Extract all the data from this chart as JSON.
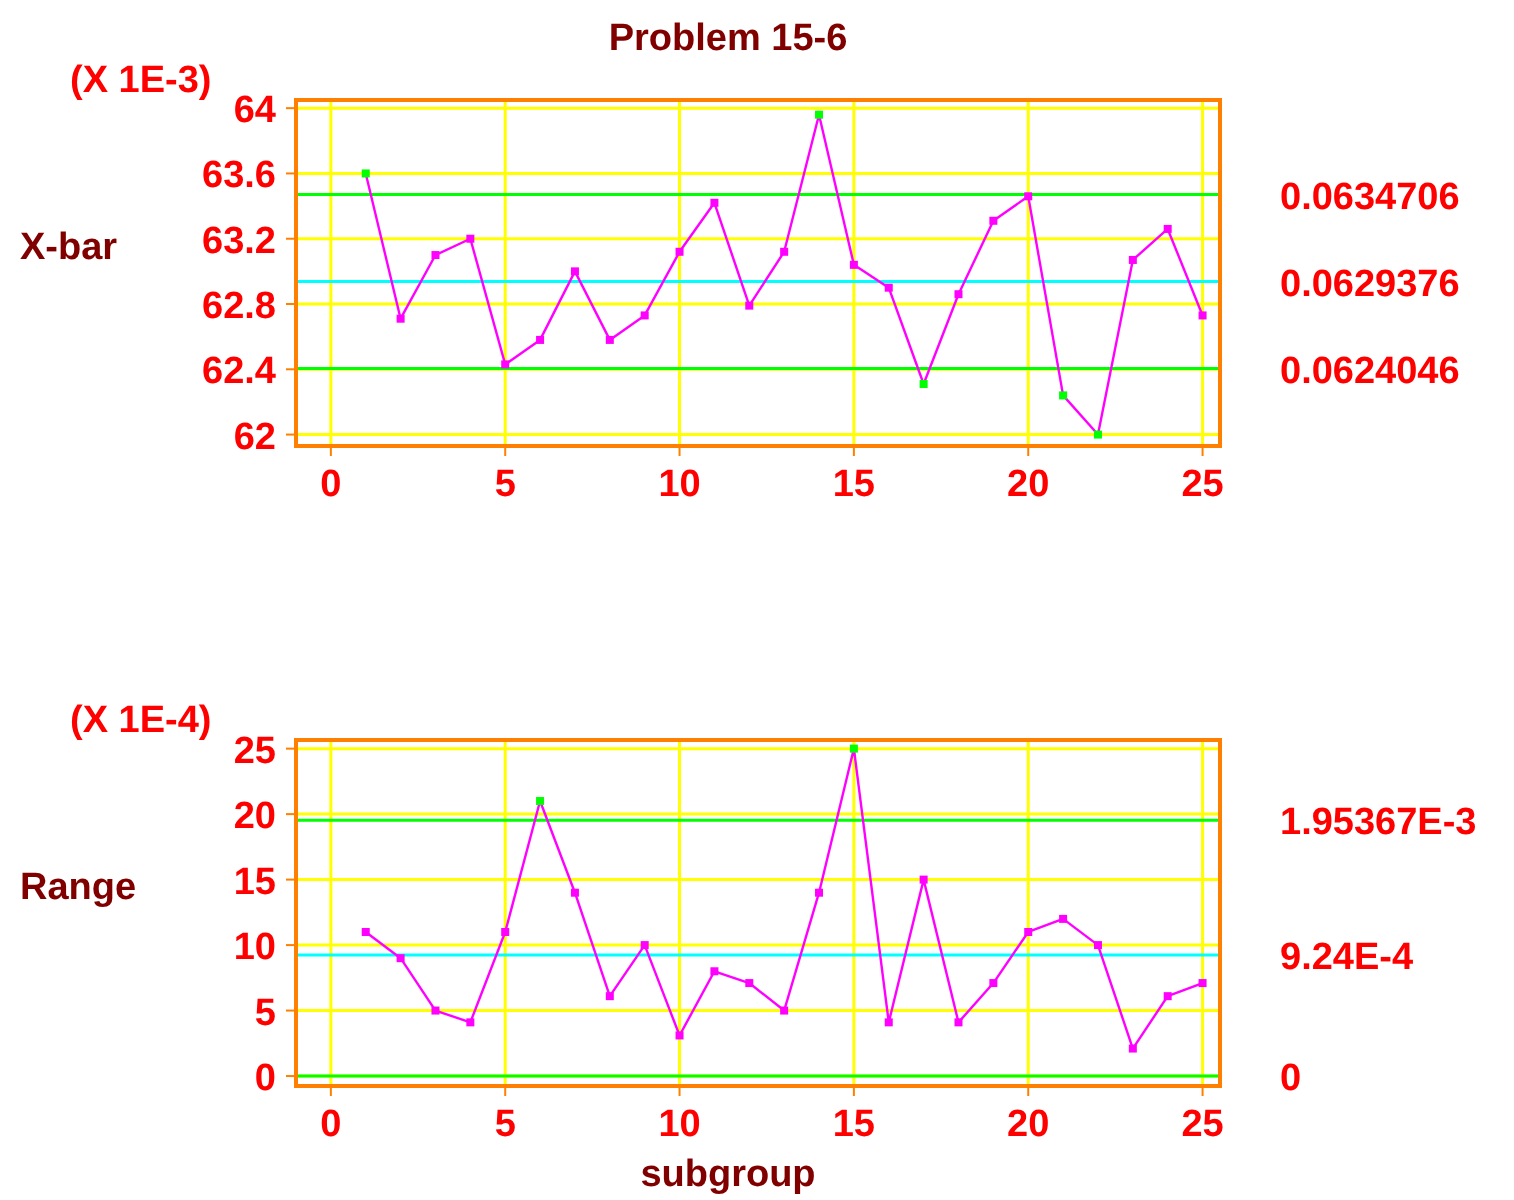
{
  "chart_data": [
    {
      "type": "line",
      "title": "Problem 15-6",
      "ylabel": "X-bar",
      "annotations": [
        "(X 1E-3)",
        "0.0634706",
        "0.0629376",
        "0.0624046"
      ],
      "x": [
        1,
        2,
        3,
        4,
        5,
        6,
        7,
        8,
        9,
        10,
        11,
        12,
        13,
        14,
        15,
        16,
        17,
        18,
        19,
        20,
        21,
        22,
        23,
        24,
        25
      ],
      "series": [
        {
          "color": "#ff00ff",
          "values": [
            63.6,
            62.71,
            63.1,
            63.2,
            62.43,
            62.58,
            63.0,
            62.58,
            62.73,
            63.12,
            63.42,
            62.79,
            63.12,
            63.96,
            63.04,
            62.9,
            62.31,
            62.86,
            63.31,
            63.46,
            62.24,
            62.0,
            63.07,
            63.26,
            62.73
          ],
          "colors": [
            "#00ff00",
            "#ff00ff",
            "#ff00ff",
            "#ff00ff",
            "#ff00ff",
            "#ff00ff",
            "#ff00ff",
            "#ff00ff",
            "#ff00ff",
            "#ff00ff",
            "#ff00ff",
            "#ff00ff",
            "#ff00ff",
            "#00ff00",
            "#ff00ff",
            "#ff00ff",
            "#00ff00",
            "#ff00ff",
            "#ff00ff",
            "#ff00ff",
            "#00ff00",
            "#00ff00",
            "#ff00ff",
            "#ff00ff",
            "#ff00ff"
          ]
        }
      ],
      "xlim": [
        -1,
        25.5
      ],
      "xticks": [
        0,
        5,
        10,
        15,
        20,
        25
      ],
      "ylim": [
        61.93,
        64.05
      ],
      "yticks": [
        62,
        62.4,
        62.8,
        63.2,
        63.6,
        64
      ],
      "grid": true,
      "marker": "square",
      "line_style": "solid",
      "ref_lines": [
        {
          "axis": "y",
          "value": 63.4706,
          "color": "#00ff00"
        },
        {
          "axis": "y",
          "value": 62.9376,
          "color": "#00ffff"
        },
        {
          "axis": "y",
          "value": 62.4046,
          "color": "#00ff00"
        }
      ]
    },
    {
      "type": "line",
      "ylabel": "Range",
      "xlabel": "subgroup",
      "annotations": [
        "(X 1E-4)"
      ],
      "x": [
        1,
        2,
        3,
        4,
        5,
        6,
        7,
        8,
        9,
        10,
        11,
        12,
        13,
        14,
        15,
        16,
        17,
        18,
        19,
        20,
        21,
        22,
        23,
        24,
        25
      ],
      "series": [
        {
          "color": "#ff00ff",
          "values": [
            11.0,
            9.0,
            5.0,
            4.1,
            11.0,
            21.0,
            14.0,
            6.1,
            10.0,
            3.1,
            8.0,
            7.1,
            5.0,
            14.0,
            25.0,
            4.1,
            15.0,
            4.1,
            7.1,
            11.0,
            12.0,
            10.0,
            2.1,
            6.1,
            7.1
          ],
          "colors": [
            "#ff00ff",
            "#ff00ff",
            "#ff00ff",
            "#ff00ff",
            "#ff00ff",
            "#00ff00",
            "#ff00ff",
            "#ff00ff",
            "#ff00ff",
            "#ff00ff",
            "#ff00ff",
            "#ff00ff",
            "#ff00ff",
            "#ff00ff",
            "#00ff00",
            "#ff00ff",
            "#ff00ff",
            "#ff00ff",
            "#ff00ff",
            "#ff00ff",
            "#ff00ff",
            "#ff00ff",
            "#ff00ff",
            "#ff00ff",
            "#ff00ff"
          ]
        }
      ],
      "xlim": [
        -1,
        25.5
      ],
      "xticks": [
        0,
        5,
        10,
        15,
        20,
        25
      ],
      "ylim": [
        -0.76,
        25.66
      ],
      "yticks": [
        0,
        5,
        10,
        15,
        20,
        25
      ],
      "grid": true,
      "marker": "square",
      "line_style": "solid",
      "ref_lines": [
        {
          "axis": "y",
          "value": 19.5367,
          "label": "1.95367E-3",
          "color": "#00ff00"
        },
        {
          "axis": "y",
          "value": 9.24,
          "label": "9.24E-4",
          "color": "#00ffff"
        },
        {
          "axis": "y",
          "value": 0,
          "label": "0",
          "color": "#00ff00"
        }
      ]
    }
  ]
}
